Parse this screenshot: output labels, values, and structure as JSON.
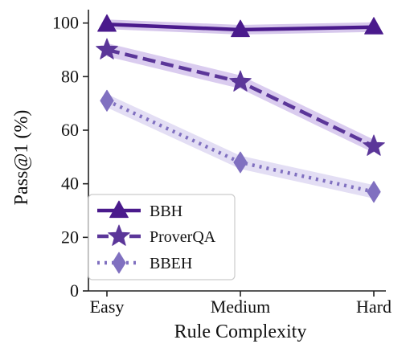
{
  "chart_data": {
    "type": "line",
    "title": "",
    "xlabel": "Rule Complexity",
    "ylabel": "Pass@1 (%)",
    "categories": [
      "Easy",
      "Medium",
      "Hard"
    ],
    "ylim": [
      0,
      105
    ],
    "yticks": [
      0,
      20,
      40,
      60,
      80,
      100
    ],
    "grid": false,
    "legend_position": "bottom-left",
    "series": [
      {
        "name": "BBH",
        "values": [
          99.5,
          97.5,
          98.5
        ],
        "band": 1.8,
        "color": "#4a1a8c",
        "band_color": "#c9b6e6",
        "line_style": "solid",
        "marker": "triangle"
      },
      {
        "name": "ProverQA",
        "values": [
          90,
          78,
          54
        ],
        "band": 2.5,
        "color": "#5b3699",
        "band_color": "#cdbbea",
        "line_style": "dashed",
        "marker": "star"
      },
      {
        "name": "BBEH",
        "values": [
          71,
          48,
          37
        ],
        "band": 2.5,
        "color": "#8070c0",
        "band_color": "#d9d3f0",
        "line_style": "dotted",
        "marker": "diamond"
      }
    ]
  }
}
